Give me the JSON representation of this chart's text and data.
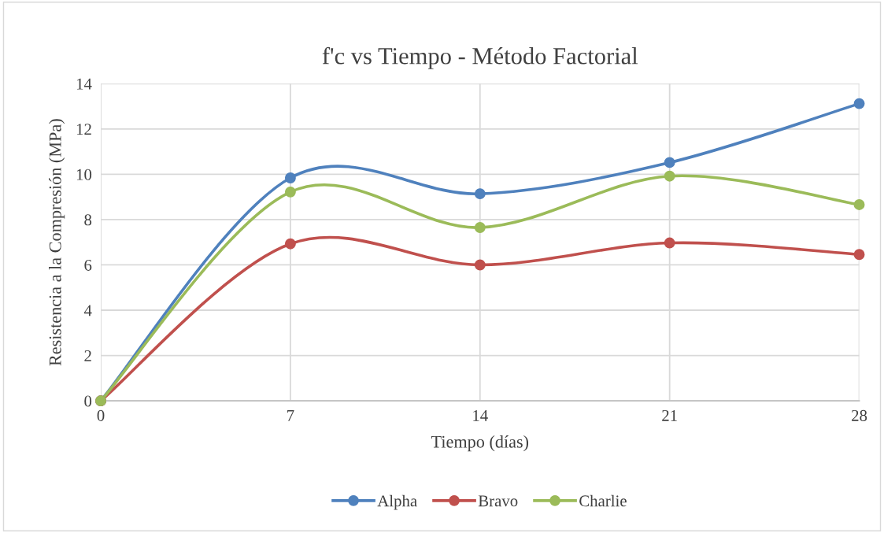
{
  "chart_data": {
    "type": "line",
    "title": "f'c vs Tiempo - Método Factorial",
    "xlabel": "Tiempo (días)",
    "ylabel": "Resistencia a la Compresión (MPa)",
    "x": [
      0,
      7,
      14,
      21,
      28
    ],
    "series": [
      {
        "name": "Alpha",
        "color": "#4f81bd",
        "values": [
          0,
          9.84,
          9.14,
          10.52,
          13.12
        ]
      },
      {
        "name": "Bravo",
        "color": "#c0504d",
        "values": [
          0,
          6.93,
          6.0,
          6.97,
          6.46
        ]
      },
      {
        "name": "Charlie",
        "color": "#9bbb59",
        "values": [
          0,
          9.22,
          7.65,
          9.92,
          8.66
        ]
      }
    ],
    "xlim": [
      0,
      28
    ],
    "xticks": [
      0,
      7,
      14,
      21,
      28
    ],
    "ylim": [
      0,
      14
    ],
    "yticks": [
      0,
      2,
      4,
      6,
      8,
      10,
      12,
      14
    ],
    "grid": true,
    "legend": "bottom",
    "marker": "circle",
    "line_style": "solid"
  }
}
